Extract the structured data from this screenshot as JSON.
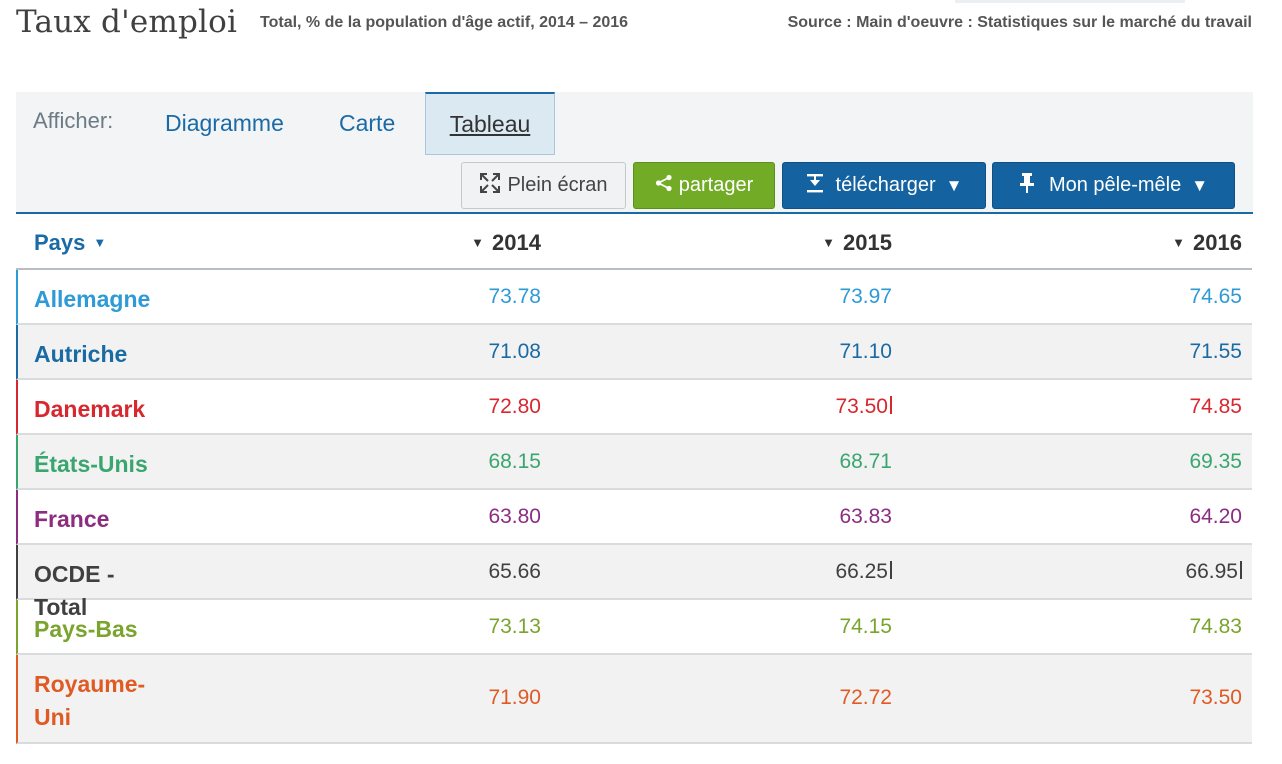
{
  "header": {
    "title": "Taux d'emploi",
    "subtitle": "Total, % de la population d'âge actif, 2014 – 2016",
    "source": "Source : Main d'oeuvre : Statistiques sur le marché du travail"
  },
  "toolbar": {
    "afficher_label": "Afficher:",
    "tabs": [
      {
        "label": "Diagramme"
      },
      {
        "label": "Carte"
      },
      {
        "label": "Tableau",
        "selected": true
      }
    ],
    "buttons": {
      "plein_ecran": {
        "label": "Plein écran",
        "icon": "fullscreen-icon"
      },
      "partager": {
        "label": "partager",
        "icon": "share-icon"
      },
      "telecharger": {
        "label": "télécharger",
        "icon": "download-icon"
      },
      "pelemele": {
        "label": "Mon pêle-mêle",
        "icon": "pin-icon"
      }
    }
  },
  "colors": {
    "primary": "#1b6aa5",
    "partager_green": "#72ac27",
    "button_blue": "#1463a0"
  },
  "table": {
    "headers": {
      "pays": "Pays",
      "y2014": "2014",
      "y2015": "2015",
      "y2016": "2016"
    },
    "rows": [
      {
        "pays": "Allemagne",
        "v2014": "73.78",
        "v2015": "73.97",
        "v2016": "74.65",
        "color": "#2e9ad6"
      },
      {
        "pays": "Autriche",
        "v2014": "71.08",
        "v2015": "71.10",
        "v2016": "71.55",
        "color": "#1a6aa3"
      },
      {
        "pays": "Danemark",
        "v2014": "72.80",
        "v2015": "73.50",
        "v2016": "74.85",
        "color": "#d7282f",
        "flag2015": true
      },
      {
        "pays": "États-Unis",
        "v2014": "68.15",
        "v2015": "68.71",
        "v2016": "69.35",
        "color": "#3aa66f"
      },
      {
        "pays": "France",
        "v2014": "63.80",
        "v2015": "63.83",
        "v2016": "64.20",
        "color": "#8c2d82"
      },
      {
        "pays": "OCDE - Total",
        "v2014": "65.66",
        "v2015": "66.25",
        "v2016": "66.95",
        "color": "#404040",
        "flag2015": true,
        "flag2016": true
      },
      {
        "pays": "Pays-Bas",
        "v2014": "73.13",
        "v2015": "74.15",
        "v2016": "74.83",
        "color": "#7aa42d"
      },
      {
        "pays": "Royaume-Uni",
        "v2014": "71.90",
        "v2015": "72.72",
        "v2016": "73.50",
        "color": "#e05a24"
      }
    ]
  }
}
